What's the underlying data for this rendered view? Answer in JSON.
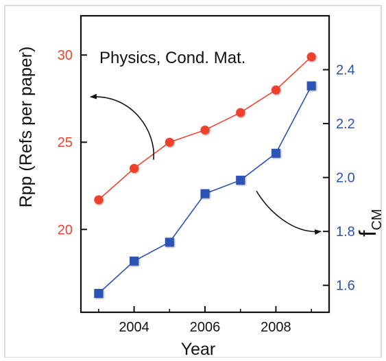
{
  "chart_data": {
    "type": "line",
    "annotation": "Physics, Cond. Mat.",
    "xlabel": "Year",
    "x_ticks": [
      "2004",
      "2006",
      "2008"
    ],
    "x_tick_values": [
      2004,
      2006,
      2008
    ],
    "xlim": [
      2002.5,
      2009.5
    ],
    "y_left": {
      "label": "Rpp (Refs per paper)",
      "ylim": [
        15.25,
        32.25
      ],
      "ticks": [
        "20",
        "25",
        "30"
      ],
      "tick_values": [
        20,
        25,
        30
      ],
      "color": "#f0412b"
    },
    "y_right": {
      "label": "f",
      "label_subscript": "CM",
      "ylim": [
        1.5,
        2.6
      ],
      "ticks": [
        "1.6",
        "1.8",
        "2.0",
        "2.2",
        "2.4"
      ],
      "tick_values": [
        1.6,
        1.8,
        2.0,
        2.2,
        2.4
      ],
      "color": "#2b52b5"
    },
    "series": [
      {
        "axis": "left",
        "marker": "circle",
        "color": "#f0412b",
        "x": [
          2003,
          2004,
          2005,
          2006,
          2007,
          2008,
          2009
        ],
        "values": [
          21.7,
          23.5,
          25.0,
          25.7,
          26.7,
          28.0,
          29.9
        ]
      },
      {
        "axis": "right",
        "marker": "square",
        "color": "#2b52b5",
        "x": [
          2003,
          2004,
          2005,
          2006,
          2007,
          2008,
          2009
        ],
        "values": [
          1.57,
          1.69,
          1.76,
          1.94,
          1.99,
          2.09,
          2.34
        ]
      }
    ],
    "arrows": [
      {
        "from_series": "left",
        "points_to": "left-axis"
      },
      {
        "from_series": "right",
        "points_to": "right-axis"
      }
    ],
    "grid": false,
    "legend": "none"
  }
}
